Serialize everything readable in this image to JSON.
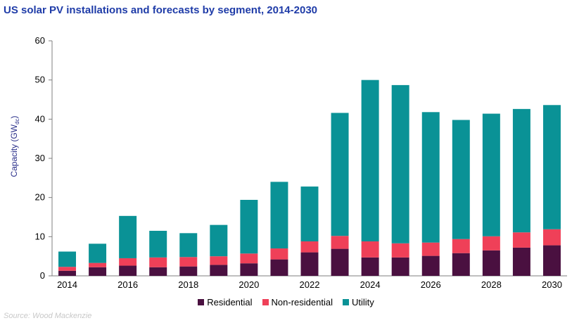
{
  "source": "Source: Wood Mackenzie",
  "chart_data": {
    "type": "bar",
    "stacked": true,
    "title": "US solar PV installations and forecasts by segment, 2014-2030",
    "ylabel": "Capacity (GW",
    "ylabel_sub": "dc",
    "ylabel_end": ")",
    "xlabel": "",
    "ylim": [
      0,
      60
    ],
    "yticks": [
      0,
      10,
      20,
      30,
      40,
      50,
      60
    ],
    "categories": [
      "2014",
      "2015",
      "2016",
      "2017",
      "2018",
      "2019",
      "2020",
      "2021",
      "2022",
      "2023",
      "2024",
      "2025",
      "2026",
      "2027",
      "2028",
      "2029",
      "2030"
    ],
    "xtick_labels": [
      "2014",
      "2016",
      "2018",
      "2020",
      "2022",
      "2024",
      "2026",
      "2028",
      "2030"
    ],
    "grid": false,
    "legend_position": "bottom",
    "series": [
      {
        "name": "Residential",
        "color": "#4a1040",
        "values": [
          1.3,
          2.2,
          2.6,
          2.2,
          2.4,
          2.8,
          3.2,
          4.2,
          6.0,
          6.9,
          4.7,
          4.7,
          5.1,
          5.8,
          6.5,
          7.2,
          7.8
        ]
      },
      {
        "name": "Non-residential",
        "color": "#ef4058",
        "values": [
          1.0,
          1.1,
          1.9,
          2.5,
          2.4,
          2.2,
          2.5,
          2.8,
          2.8,
          3.3,
          4.1,
          3.6,
          3.4,
          3.6,
          3.6,
          3.9,
          4.1
        ]
      },
      {
        "name": "Utility",
        "color": "#0a9296",
        "values": [
          3.9,
          4.9,
          10.8,
          6.8,
          6.1,
          8.0,
          13.7,
          17.0,
          14.0,
          31.4,
          41.2,
          40.4,
          33.3,
          30.4,
          31.3,
          31.5,
          31.7
        ]
      }
    ]
  }
}
